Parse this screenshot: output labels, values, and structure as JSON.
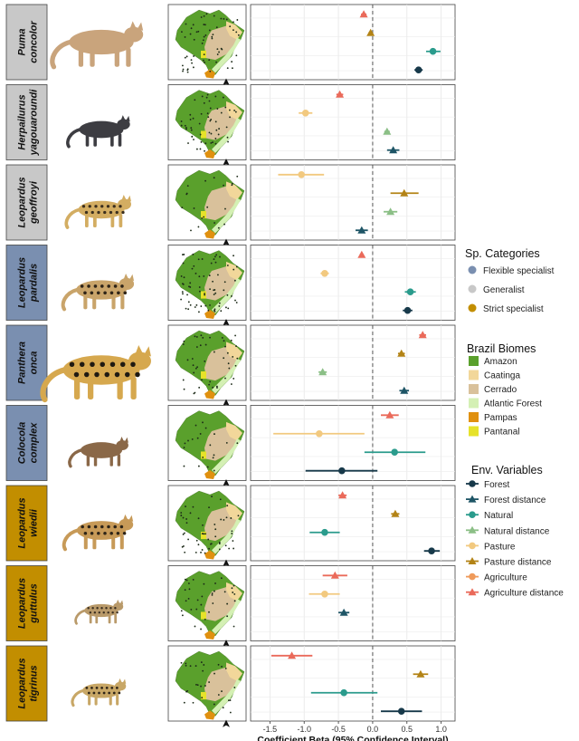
{
  "colors": {
    "categories": {
      "Flexible specialist": "#7a8fb0",
      "Generalist": "#c8c8c8",
      "Strict specialist": "#c28e00"
    },
    "biomes": {
      "Amazon": "#5aa02c",
      "Caatinga": "#f2d79a",
      "Cerrado": "#d9c19b",
      "Atlantic Forest": "#d4f0b4",
      "Pampas": "#e0900f",
      "Pantanal": "#e6e22a"
    },
    "variables": {
      "Forest": "#17394a",
      "Forest distance": "#1e5566",
      "Natural": "#2a9b8c",
      "Natural distance": "#8bbf86",
      "Pasture": "#f2c97f",
      "Pasture distance": "#b38316",
      "Agriculture": "#ef9a5a",
      "Agriculture distance": "#ea6a5a"
    }
  },
  "legend": {
    "categories_title": "Sp. Categories",
    "categories": [
      "Flexible specialist",
      "Generalist",
      "Strict specialist"
    ],
    "biomes_title": "Brazil Biomes",
    "biomes": [
      "Amazon",
      "Caatinga",
      "Cerrado",
      "Atlantic Forest",
      "Pampas",
      "Pantanal"
    ],
    "variables_title": "Env. Variables",
    "variables": [
      {
        "label": "Forest",
        "shape": "circle"
      },
      {
        "label": "Forest distance",
        "shape": "triangle"
      },
      {
        "label": "Natural",
        "shape": "circle"
      },
      {
        "label": "Natural distance",
        "shape": "triangle"
      },
      {
        "label": "Pasture",
        "shape": "circle"
      },
      {
        "label": "Pasture distance",
        "shape": "triangle"
      },
      {
        "label": "Agriculture",
        "shape": "circle"
      },
      {
        "label": "Agriculture distance",
        "shape": "triangle"
      }
    ]
  },
  "chart_data": {
    "type": "scatter",
    "xlabel": "Coefficient Beta (95% Confidence Interval)",
    "xlim": [
      -1.65,
      1.15
    ],
    "xticks": [
      -1.5,
      -1.0,
      -0.5,
      0.0,
      0.5,
      1.0
    ],
    "xtick_labels": [
      "-1.5",
      "-1.0",
      "-0.5",
      "0.0",
      "0.5",
      "1.0"
    ],
    "reference_line": 0,
    "species": [
      {
        "name": "Puma concolor",
        "label": [
          "Puma",
          "concolor"
        ],
        "category": "Generalist",
        "points": [
          {
            "var": "Agriculture distance",
            "est": -0.13,
            "lo": -0.17,
            "hi": -0.09
          },
          {
            "var": "Pasture distance",
            "est": -0.03,
            "lo": -0.06,
            "hi": 0.0
          },
          {
            "var": "Natural",
            "est": 0.88,
            "lo": 0.78,
            "hi": 0.99
          },
          {
            "var": "Forest",
            "est": 0.67,
            "lo": 0.61,
            "hi": 0.73
          }
        ]
      },
      {
        "name": "Herpailurus yagouaroundi",
        "label": [
          "Herpailurus",
          "yagouaroundi"
        ],
        "category": "Generalist",
        "points": [
          {
            "var": "Agriculture distance",
            "est": -0.48,
            "lo": -0.53,
            "hi": -0.43
          },
          {
            "var": "Pasture",
            "est": -0.98,
            "lo": -1.08,
            "hi": -0.88
          },
          {
            "var": "Natural distance",
            "est": 0.21,
            "lo": 0.17,
            "hi": 0.25
          },
          {
            "var": "Forest distance",
            "est": 0.3,
            "lo": 0.21,
            "hi": 0.39
          }
        ]
      },
      {
        "name": "Leopardus geoffroyi",
        "label": [
          "Leopardus",
          "geoffroyi"
        ],
        "category": "Generalist",
        "points": [
          {
            "var": "Pasture",
            "est": -1.04,
            "lo": -1.38,
            "hi": -0.71
          },
          {
            "var": "Pasture distance",
            "est": 0.46,
            "lo": 0.26,
            "hi": 0.67
          },
          {
            "var": "Natural distance",
            "est": 0.26,
            "lo": 0.16,
            "hi": 0.36
          },
          {
            "var": "Forest distance",
            "est": -0.16,
            "lo": -0.25,
            "hi": -0.07
          }
        ]
      },
      {
        "name": "Leopardus pardalis",
        "label": [
          "Leopardus",
          "pardalis"
        ],
        "category": "Flexible specialist",
        "points": [
          {
            "var": "Agriculture distance",
            "est": -0.16,
            "lo": -0.19,
            "hi": -0.13
          },
          {
            "var": "Pasture",
            "est": -0.7,
            "lo": -0.76,
            "hi": -0.64
          },
          {
            "var": "Natural",
            "est": 0.55,
            "lo": 0.47,
            "hi": 0.63
          },
          {
            "var": "Forest",
            "est": 0.51,
            "lo": 0.44,
            "hi": 0.58
          }
        ]
      },
      {
        "name": "Panthera onca",
        "label": [
          "Panthera",
          "onca"
        ],
        "category": "Flexible specialist",
        "points": [
          {
            "var": "Agriculture distance",
            "est": 0.73,
            "lo": 0.68,
            "hi": 0.78
          },
          {
            "var": "Pasture distance",
            "est": 0.42,
            "lo": 0.37,
            "hi": 0.47
          },
          {
            "var": "Natural distance",
            "est": -0.73,
            "lo": -0.79,
            "hi": -0.67
          },
          {
            "var": "Forest distance",
            "est": 0.46,
            "lo": 0.39,
            "hi": 0.53
          }
        ]
      },
      {
        "name": "Colocola complex",
        "label": [
          "Colocola",
          "complex"
        ],
        "category": "Flexible specialist",
        "points": [
          {
            "var": "Agriculture distance",
            "est": 0.25,
            "lo": 0.12,
            "hi": 0.38
          },
          {
            "var": "Pasture",
            "est": -0.78,
            "lo": -1.45,
            "hi": -0.12
          },
          {
            "var": "Natural",
            "est": 0.32,
            "lo": -0.12,
            "hi": 0.77
          },
          {
            "var": "Forest",
            "est": -0.45,
            "lo": -0.98,
            "hi": 0.07
          }
        ]
      },
      {
        "name": "Leopardus wiedii",
        "label": [
          "Leopardus",
          "wiedii"
        ],
        "category": "Strict specialist",
        "points": [
          {
            "var": "Agriculture distance",
            "est": -0.44,
            "lo": -0.5,
            "hi": -0.38
          },
          {
            "var": "Pasture distance",
            "est": 0.33,
            "lo": 0.27,
            "hi": 0.39
          },
          {
            "var": "Natural",
            "est": -0.7,
            "lo": -0.92,
            "hi": -0.48
          },
          {
            "var": "Forest",
            "est": 0.86,
            "lo": 0.75,
            "hi": 0.98
          }
        ]
      },
      {
        "name": "Leopardus guttulus",
        "label": [
          "Leopardus",
          "guttulus"
        ],
        "category": "Strict specialist",
        "points": [
          {
            "var": "Agriculture distance",
            "est": -0.55,
            "lo": -0.73,
            "hi": -0.37
          },
          {
            "var": "Pasture",
            "est": -0.7,
            "lo": -0.93,
            "hi": -0.48
          },
          {
            "var": "Forest distance",
            "est": -0.42,
            "lo": -0.5,
            "hi": -0.34
          }
        ]
      },
      {
        "name": "Leopardus tigrinus",
        "label": [
          "Leopardus",
          "tigrinus"
        ],
        "category": "Strict specialist",
        "points": [
          {
            "var": "Agriculture distance",
            "est": -1.18,
            "lo": -1.48,
            "hi": -0.88
          },
          {
            "var": "Pasture distance",
            "est": 0.7,
            "lo": 0.59,
            "hi": 0.81
          },
          {
            "var": "Natural",
            "est": -0.42,
            "lo": -0.9,
            "hi": 0.07
          },
          {
            "var": "Forest",
            "est": 0.42,
            "lo": 0.12,
            "hi": 0.72
          }
        ]
      }
    ]
  }
}
